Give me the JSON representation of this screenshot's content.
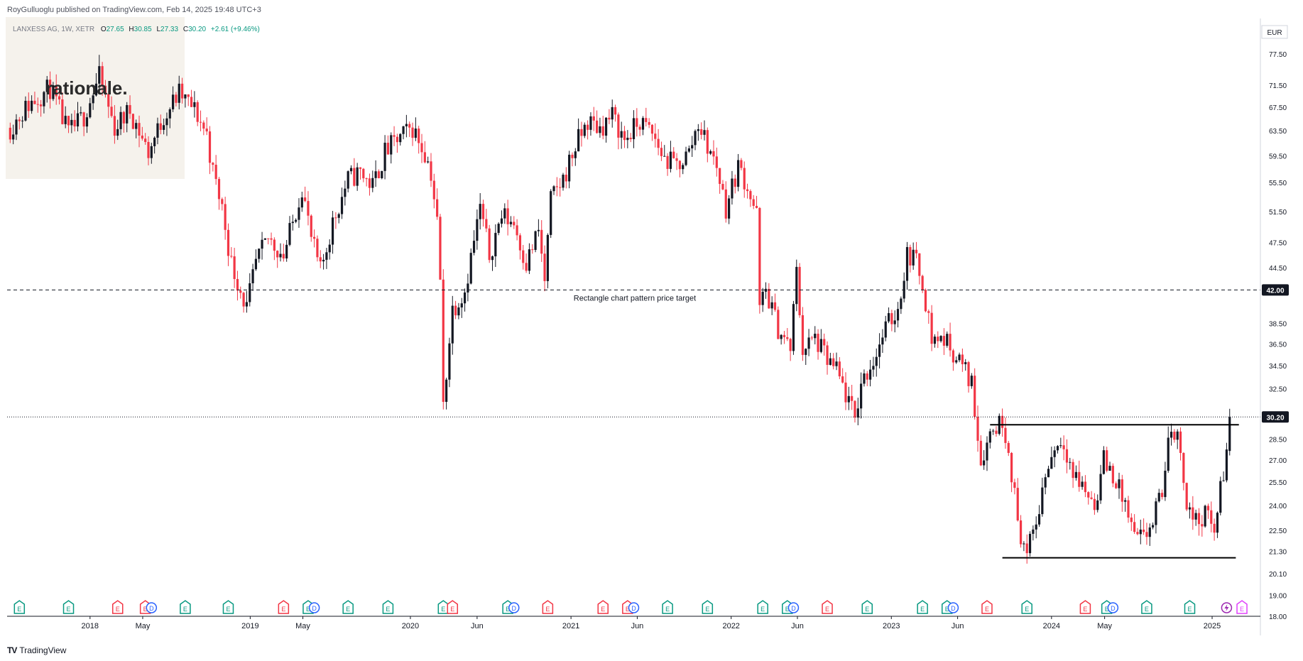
{
  "header": {
    "publisher": "RoyGulluoglu published on TradingView.com,",
    "timestamp": "Feb 14, 2025 19:48 UTC+3"
  },
  "legend": {
    "symbol": "LANXESS AG, 1W, XETR",
    "open_label": "O",
    "open": "27.65",
    "high_label": "H",
    "high": "30.85",
    "low_label": "L",
    "low": "27.33",
    "close_label": "C",
    "close": "30.20",
    "change": "+2.61 (+9.46%)"
  },
  "logo": {
    "text": "rationale."
  },
  "footer": {
    "brand": "TradingView",
    "icon": "tradingview-logo-icon"
  },
  "colors": {
    "up": "#131722",
    "down": "#f23645",
    "earnings": "#089981",
    "dividend": "#2962ff",
    "axis_text": "#131722",
    "price_tag_bg": "#131722",
    "watermark_bg": "#f5f2ec"
  },
  "chart_data": {
    "type": "candlestick",
    "interval": "1W",
    "currency": "EUR",
    "y_scale": "log",
    "ylim": [
      18.0,
      85.0
    ],
    "y_ticks": [
      18.0,
      19.0,
      20.1,
      21.3,
      22.5,
      24.0,
      25.5,
      27.0,
      28.5,
      30.2,
      32.5,
      34.5,
      36.5,
      38.5,
      42.0,
      44.5,
      47.5,
      51.5,
      55.5,
      59.5,
      63.5,
      67.5,
      71.5,
      77.5,
      82.5
    ],
    "y_tick_labels": [
      "18.00",
      "19.00",
      "20.10",
      "21.30",
      "22.50",
      "24.00",
      "25.50",
      "27.00",
      "28.50",
      "30.20",
      "32.50",
      "34.50",
      "36.50",
      "38.50",
      "42.00",
      "44.50",
      "47.50",
      "51.50",
      "55.50",
      "59.50",
      "63.50",
      "67.50",
      "71.50",
      "77.50",
      "82.50"
    ],
    "x_ticks": [
      {
        "label": "2018",
        "date": "2018-01-01"
      },
      {
        "label": "May",
        "date": "2018-05-01"
      },
      {
        "label": "2019",
        "date": "2019-01-01"
      },
      {
        "label": "May",
        "date": "2019-05-01"
      },
      {
        "label": "2020",
        "date": "2020-01-01"
      },
      {
        "label": "Jun",
        "date": "2020-06-01"
      },
      {
        "label": "2021",
        "date": "2021-01-01"
      },
      {
        "label": "Jun",
        "date": "2021-06-01"
      },
      {
        "label": "2022",
        "date": "2022-01-01"
      },
      {
        "label": "Jun",
        "date": "2022-06-01"
      },
      {
        "label": "2023",
        "date": "2023-01-01"
      },
      {
        "label": "Jun",
        "date": "2023-06-01"
      },
      {
        "label": "2024",
        "date": "2024-01-01"
      },
      {
        "label": "May",
        "date": "2024-05-01"
      },
      {
        "label": "2025",
        "date": "2025-01-01"
      }
    ],
    "price_path": [
      [
        "2017-07-03",
        64
      ],
      [
        "2017-08-14",
        68
      ],
      [
        "2017-10-02",
        71
      ],
      [
        "2017-11-13",
        63
      ],
      [
        "2017-12-18",
        66
      ],
      [
        "2018-01-22",
        73
      ],
      [
        "2018-02-26",
        64
      ],
      [
        "2018-04-02",
        67
      ],
      [
        "2018-05-14",
        60
      ],
      [
        "2018-06-18",
        66
      ],
      [
        "2018-07-23",
        70
      ],
      [
        "2018-08-27",
        67
      ],
      [
        "2018-09-24",
        63
      ],
      [
        "2018-10-08",
        57
      ],
      [
        "2018-10-29",
        52
      ],
      [
        "2018-11-19",
        45
      ],
      [
        "2018-12-10",
        42
      ],
      [
        "2018-12-24",
        40
      ],
      [
        "2019-01-14",
        45
      ],
      [
        "2019-02-11",
        48
      ],
      [
        "2019-03-18",
        46
      ],
      [
        "2019-04-08",
        50
      ],
      [
        "2019-04-29",
        55
      ],
      [
        "2019-05-20",
        48
      ],
      [
        "2019-06-10",
        44
      ],
      [
        "2019-07-08",
        50
      ],
      [
        "2019-08-12",
        56
      ],
      [
        "2019-09-09",
        57
      ],
      [
        "2019-10-07",
        55
      ],
      [
        "2019-11-04",
        60
      ],
      [
        "2019-12-02",
        62
      ],
      [
        "2020-01-06",
        64
      ],
      [
        "2020-02-03",
        60
      ],
      [
        "2020-02-17",
        57
      ],
      [
        "2020-03-02",
        50
      ],
      [
        "2020-03-09",
        43
      ],
      [
        "2020-03-16",
        31
      ],
      [
        "2020-03-23",
        34
      ],
      [
        "2020-04-06",
        40
      ],
      [
        "2020-05-04",
        42
      ],
      [
        "2020-06-08",
        52
      ],
      [
        "2020-06-29",
        46
      ],
      [
        "2020-07-27",
        51
      ],
      [
        "2020-08-24",
        50
      ],
      [
        "2020-09-21",
        45
      ],
      [
        "2020-10-19",
        49
      ],
      [
        "2020-11-02",
        43
      ],
      [
        "2020-11-16",
        53
      ],
      [
        "2020-12-14",
        56
      ],
      [
        "2021-01-11",
        61
      ],
      [
        "2021-02-08",
        65
      ],
      [
        "2021-03-08",
        64
      ],
      [
        "2021-04-05",
        66
      ],
      [
        "2021-05-03",
        62
      ],
      [
        "2021-06-07",
        65
      ],
      [
        "2021-07-05",
        63
      ],
      [
        "2021-08-02",
        59
      ],
      [
        "2021-08-30",
        58
      ],
      [
        "2021-09-27",
        60
      ],
      [
        "2021-10-18",
        65
      ],
      [
        "2021-11-08",
        61
      ],
      [
        "2021-11-29",
        58
      ],
      [
        "2021-12-20",
        52
      ],
      [
        "2022-01-17",
        58
      ],
      [
        "2022-02-07",
        55
      ],
      [
        "2022-02-28",
        51
      ],
      [
        "2022-03-07",
        40
      ],
      [
        "2022-03-21",
        42
      ],
      [
        "2022-04-18",
        38
      ],
      [
        "2022-05-16",
        36
      ],
      [
        "2022-05-30",
        44
      ],
      [
        "2022-06-13",
        36
      ],
      [
        "2022-07-11",
        37
      ],
      [
        "2022-08-08",
        35
      ],
      [
        "2022-08-29",
        34
      ],
      [
        "2022-09-19",
        32
      ],
      [
        "2022-10-10",
        30
      ],
      [
        "2022-10-24",
        33
      ],
      [
        "2022-11-21",
        35
      ],
      [
        "2022-12-19",
        38
      ],
      [
        "2023-01-16",
        40
      ],
      [
        "2023-02-06",
        46
      ],
      [
        "2023-02-20",
        46
      ],
      [
        "2023-03-13",
        43
      ],
      [
        "2023-04-03",
        37
      ],
      [
        "2023-05-01",
        37
      ],
      [
        "2023-06-05",
        35
      ],
      [
        "2023-07-03",
        33
      ],
      [
        "2023-07-24",
        27
      ],
      [
        "2023-08-14",
        29
      ],
      [
        "2023-09-11",
        30
      ],
      [
        "2023-09-25",
        28
      ],
      [
        "2023-10-16",
        23
      ],
      [
        "2023-11-06",
        21
      ],
      [
        "2023-11-27",
        23
      ],
      [
        "2023-12-18",
        26
      ],
      [
        "2024-01-08",
        28
      ],
      [
        "2024-01-29",
        28.5
      ],
      [
        "2024-02-19",
        26
      ],
      [
        "2024-03-18",
        25
      ],
      [
        "2024-04-08",
        24
      ],
      [
        "2024-04-29",
        27
      ],
      [
        "2024-05-20",
        26
      ],
      [
        "2024-06-17",
        24
      ],
      [
        "2024-07-08",
        22
      ],
      [
        "2024-07-29",
        22
      ],
      [
        "2024-08-19",
        23
      ],
      [
        "2024-09-09",
        25
      ],
      [
        "2024-09-30",
        29.5
      ],
      [
        "2024-10-21",
        28
      ],
      [
        "2024-11-04",
        24
      ],
      [
        "2024-11-25",
        23
      ],
      [
        "2024-12-16",
        23.5
      ],
      [
        "2025-01-06",
        22.5
      ],
      [
        "2025-01-20",
        25
      ],
      [
        "2025-01-27",
        26
      ],
      [
        "2025-02-03",
        27.6
      ],
      [
        "2025-02-10",
        30.2
      ]
    ],
    "last_bar": {
      "date": "2025-02-10",
      "open": 27.65,
      "high": 30.85,
      "low": 27.33,
      "close": 30.2
    },
    "price_lines": [
      {
        "price": 42.0,
        "style": "dashed",
        "label": "Rectangle chart pattern price target",
        "price_tag": "42.00"
      },
      {
        "price": 30.2,
        "style": "dotted",
        "price_tag": "30.20"
      }
    ],
    "rectangle_pattern": {
      "top": 29.6,
      "bottom": 20.95,
      "top_start": "2023-08-14",
      "top_end": "2025-03-03",
      "bottom_start": "2023-09-11",
      "bottom_end": "2025-02-24"
    },
    "events": [
      {
        "date": "2017-07-24",
        "type": "E"
      },
      {
        "date": "2017-11-13",
        "type": "E"
      },
      {
        "date": "2018-03-05",
        "type": "E",
        "negative": true
      },
      {
        "date": "2018-05-07",
        "type": "E",
        "negative": true
      },
      {
        "date": "2018-05-21",
        "type": "D"
      },
      {
        "date": "2018-08-06",
        "type": "E"
      },
      {
        "date": "2018-11-12",
        "type": "E"
      },
      {
        "date": "2019-03-18",
        "type": "E",
        "negative": true
      },
      {
        "date": "2019-05-13",
        "type": "E"
      },
      {
        "date": "2019-05-27",
        "type": "D"
      },
      {
        "date": "2019-08-12",
        "type": "E"
      },
      {
        "date": "2019-11-11",
        "type": "E"
      },
      {
        "date": "2020-03-16",
        "type": "E"
      },
      {
        "date": "2020-04-06",
        "type": "E",
        "negative": true
      },
      {
        "date": "2020-08-10",
        "type": "E"
      },
      {
        "date": "2020-08-24",
        "type": "D"
      },
      {
        "date": "2020-11-09",
        "type": "E",
        "negative": true
      },
      {
        "date": "2021-03-15",
        "type": "E",
        "negative": true
      },
      {
        "date": "2021-05-10",
        "type": "E",
        "negative": true
      },
      {
        "date": "2021-05-24",
        "type": "D"
      },
      {
        "date": "2021-08-09",
        "type": "E"
      },
      {
        "date": "2021-11-08",
        "type": "E"
      },
      {
        "date": "2022-03-14",
        "type": "E"
      },
      {
        "date": "2022-05-09",
        "type": "E"
      },
      {
        "date": "2022-05-23",
        "type": "D"
      },
      {
        "date": "2022-08-08",
        "type": "E",
        "negative": true
      },
      {
        "date": "2022-11-07",
        "type": "E"
      },
      {
        "date": "2023-03-13",
        "type": "E"
      },
      {
        "date": "2023-05-08",
        "type": "E"
      },
      {
        "date": "2023-05-22",
        "type": "D"
      },
      {
        "date": "2023-08-07",
        "type": "E",
        "negative": true
      },
      {
        "date": "2023-11-06",
        "type": "E"
      },
      {
        "date": "2024-03-18",
        "type": "E",
        "negative": true
      },
      {
        "date": "2024-05-06",
        "type": "E"
      },
      {
        "date": "2024-05-20",
        "type": "D"
      },
      {
        "date": "2024-08-05",
        "type": "E"
      },
      {
        "date": "2024-11-11",
        "type": "E"
      },
      {
        "date": "2025-02-03",
        "type": "S"
      },
      {
        "date": "2025-03-10",
        "type": "E",
        "future": true
      }
    ]
  }
}
